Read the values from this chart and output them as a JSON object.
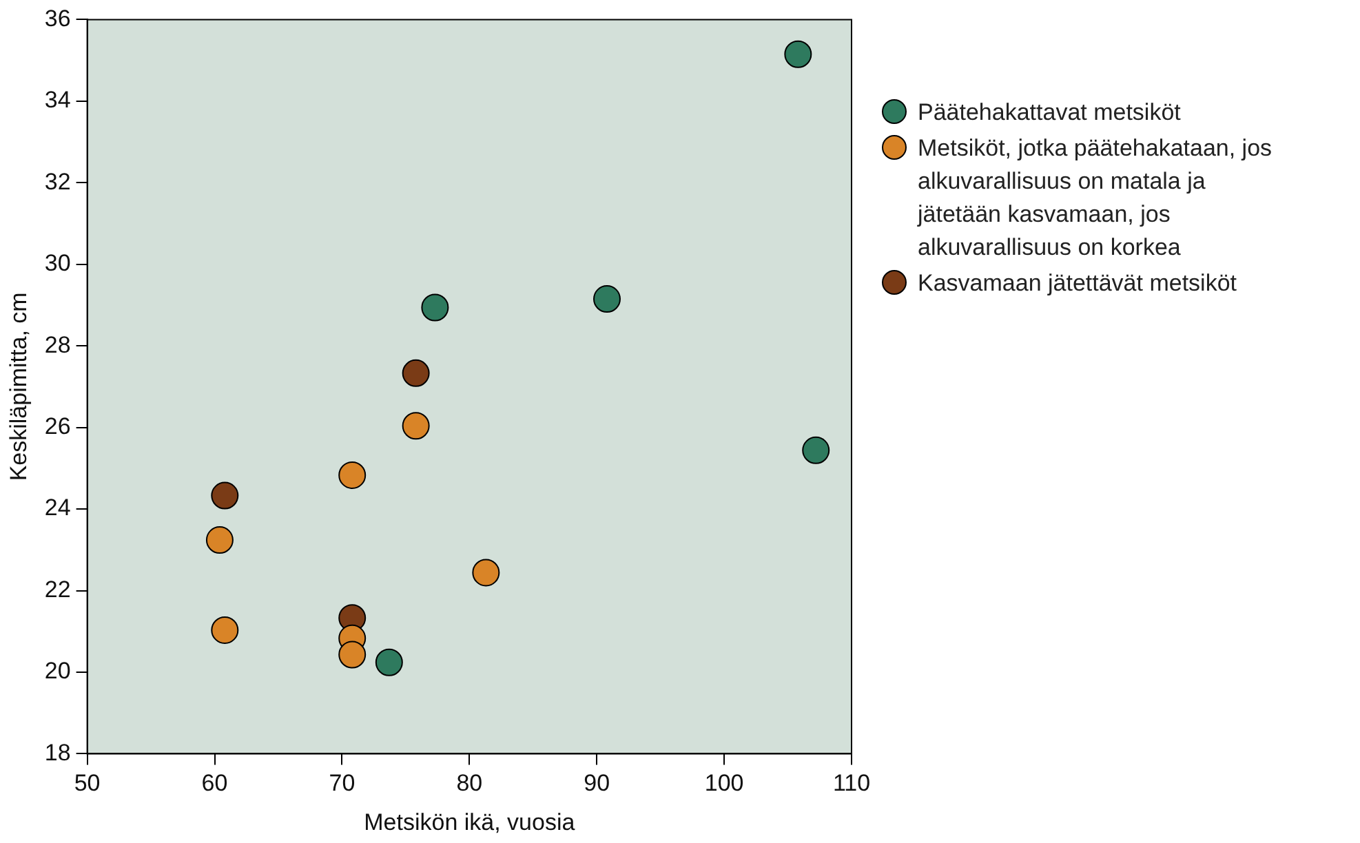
{
  "chart_data": {
    "type": "scatter",
    "xlabel": "Metsikön ikä, vuosia",
    "ylabel": "Keskiläpimitta, cm",
    "xlim": [
      50,
      110
    ],
    "xticks": [
      50,
      60,
      70,
      80,
      90,
      100,
      110
    ],
    "ylim": [
      18,
      36
    ],
    "yticks": [
      18,
      20,
      22,
      24,
      26,
      28,
      30,
      32,
      34,
      36
    ],
    "grid": false,
    "legend": "right",
    "marker": "circle",
    "series": [
      {
        "name": "Päätehakattavat metsiköt",
        "color": "#2e7a5e",
        "x": [
          105.8,
          77.3,
          90.8,
          107.2,
          73.7
        ],
        "values": [
          35.15,
          28.94,
          29.15,
          25.44,
          20.24
        ]
      },
      {
        "name": "Metsiköt, jotka päätehakataan, jos alkuvarallisuus on matala ja jätetään kasvamaan, jos alkuvarallisuus on korkea",
        "color": "#d98427",
        "x": [
          70.8,
          75.8,
          60.4,
          60.8,
          70.8,
          70.8,
          81.3
        ],
        "values": [
          24.83,
          26.04,
          23.24,
          21.03,
          20.83,
          20.43,
          22.44
        ]
      },
      {
        "name": "Kasvamaan jätettävät metsiköt",
        "color": "#7a3b16",
        "x": [
          75.8,
          60.8,
          70.8
        ],
        "values": [
          27.33,
          24.33,
          21.33
        ]
      }
    ]
  }
}
